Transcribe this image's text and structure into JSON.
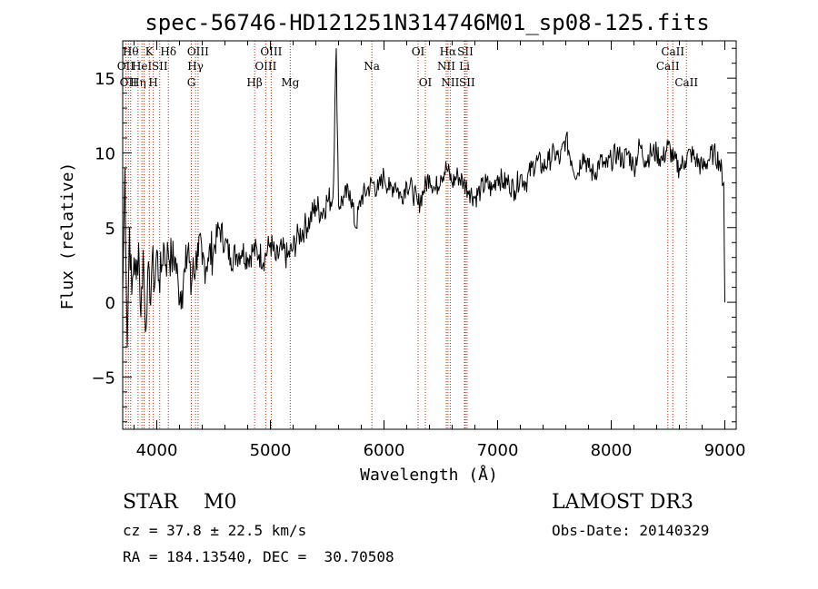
{
  "chart_data": {
    "type": "line",
    "title": "spec-56746-HD121251N314746M01_sp08-125.fits",
    "xlabel": "Wavelength (Å)",
    "ylabel": "Flux (relative)",
    "xlim": [
      3700,
      9100
    ],
    "ylim": [
      -8.5,
      17.5
    ],
    "xticks": [
      4000,
      5000,
      6000,
      7000,
      8000,
      9000
    ],
    "yticks": [
      -5,
      0,
      5,
      10,
      15
    ],
    "series": [
      {
        "name": "spectrum",
        "x": [
          3700,
          3720,
          3740,
          3760,
          3780,
          3800,
          3820,
          3840,
          3860,
          3880,
          3900,
          3920,
          3940,
          3960,
          3980,
          4000,
          4020,
          4040,
          4060,
          4080,
          4100,
          4130,
          4160,
          4190,
          4220,
          4250,
          4280,
          4300,
          4320,
          4340,
          4360,
          4400,
          4450,
          4500,
          4550,
          4600,
          4650,
          4700,
          4750,
          4800,
          4850,
          4900,
          4950,
          5000,
          5050,
          5100,
          5150,
          5200,
          5250,
          5300,
          5350,
          5400,
          5450,
          5500,
          5550,
          5580,
          5600,
          5650,
          5700,
          5750,
          5800,
          5850,
          5900,
          5950,
          6000,
          6050,
          6100,
          6150,
          6200,
          6250,
          6300,
          6350,
          6400,
          6450,
          6500,
          6550,
          6600,
          6650,
          6700,
          6750,
          6800,
          6850,
          6900,
          6950,
          7000,
          7050,
          7100,
          7150,
          7200,
          7250,
          7300,
          7350,
          7400,
          7450,
          7500,
          7550,
          7600,
          7650,
          7700,
          7750,
          7800,
          7850,
          7900,
          7950,
          8000,
          8050,
          8100,
          8150,
          8200,
          8250,
          8300,
          8350,
          8400,
          8450,
          8500,
          8550,
          8600,
          8650,
          8700,
          8750,
          8800,
          8850,
          8900,
          8950,
          8990,
          9000
        ],
        "y": [
          0.5,
          9.0,
          -3.0,
          5.0,
          0.5,
          3.0,
          1.5,
          4.0,
          -1.0,
          3.5,
          -2.0,
          2.0,
          0.0,
          3.0,
          1.0,
          3.5,
          1.5,
          2.0,
          4.0,
          2.5,
          3.5,
          2.8,
          3.0,
          1.0,
          0.8,
          2.0,
          4.0,
          0.5,
          3.0,
          2.0,
          4.0,
          2.5,
          3.0,
          3.5,
          5.0,
          4.0,
          3.0,
          3.2,
          3.5,
          3.0,
          3.5,
          3.2,
          3.0,
          4.0,
          2.8,
          3.5,
          3.0,
          3.6,
          4.5,
          5.0,
          5.5,
          6.5,
          6.0,
          6.8,
          7.0,
          17.0,
          6.5,
          7.0,
          7.5,
          5.0,
          7.0,
          7.5,
          8.0,
          7.5,
          8.5,
          7.5,
          8.0,
          7.0,
          8.0,
          7.5,
          6.5,
          7.5,
          8.5,
          7.5,
          8.5,
          9.0,
          8.0,
          8.5,
          8.0,
          7.5,
          7.0,
          7.5,
          8.0,
          7.5,
          8.5,
          8.0,
          8.0,
          7.5,
          8.5,
          8.0,
          9.0,
          9.5,
          9.0,
          9.5,
          10.0,
          9.5,
          11.0,
          9.5,
          8.5,
          10.0,
          9.0,
          8.5,
          9.5,
          9.0,
          9.5,
          10.0,
          9.5,
          10.0,
          9.0,
          10.5,
          9.5,
          10.0,
          10.0,
          9.5,
          10.5,
          9.5,
          9.0,
          9.5,
          10.0,
          9.5,
          9.0,
          9.5,
          10.0,
          9.5,
          8.0,
          0.0
        ]
      }
    ],
    "line_marks": [
      {
        "wl": 3727,
        "labels": [
          "OII"
        ],
        "row": 2
      },
      {
        "wl": 3750,
        "labels": [
          "OII"
        ],
        "row": 3
      },
      {
        "wl": 3770,
        "labels": [
          "Hθ"
        ],
        "row": 1
      },
      {
        "wl": 3835,
        "labels": [
          "Hη"
        ],
        "row": 3
      },
      {
        "wl": 3869,
        "labels": [
          "HeI"
        ],
        "row": 2
      },
      {
        "wl": 3889,
        "labels": [],
        "row": 0
      },
      {
        "wl": 3934,
        "labels": [
          "K"
        ],
        "row": 1
      },
      {
        "wl": 3969,
        "labels": [
          "H"
        ],
        "row": 3
      },
      {
        "wl": 4026,
        "labels": [
          "SII"
        ],
        "row": 2
      },
      {
        "wl": 4102,
        "labels": [
          "Hδ"
        ],
        "row": 1
      },
      {
        "wl": 4304,
        "labels": [
          "G"
        ],
        "row": 3
      },
      {
        "wl": 4341,
        "labels": [
          "Hγ"
        ],
        "row": 2
      },
      {
        "wl": 4363,
        "labels": [
          "OIII"
        ],
        "row": 1
      },
      {
        "wl": 4861,
        "labels": [
          "Hβ"
        ],
        "row": 3
      },
      {
        "wl": 4959,
        "labels": [
          "OIII"
        ],
        "row": 2
      },
      {
        "wl": 5007,
        "labels": [
          "OIII"
        ],
        "row": 1
      },
      {
        "wl": 5175,
        "labels": [
          "Mg"
        ],
        "row": 3
      },
      {
        "wl": 5893,
        "labels": [
          "Na"
        ],
        "row": 2
      },
      {
        "wl": 6300,
        "labels": [
          "OI"
        ],
        "row": 1
      },
      {
        "wl": 6364,
        "labels": [
          "OI"
        ],
        "row": 3
      },
      {
        "wl": 6548,
        "labels": [
          "NII"
        ],
        "row": 2
      },
      {
        "wl": 6563,
        "labels": [
          "Hα"
        ],
        "row": 1
      },
      {
        "wl": 6583,
        "labels": [
          "NII"
        ],
        "row": 3
      },
      {
        "wl": 6708,
        "labels": [
          "Li"
        ],
        "row": 2
      },
      {
        "wl": 6716,
        "labels": [
          "SII"
        ],
        "row": 1
      },
      {
        "wl": 6731,
        "labels": [
          "SII"
        ],
        "row": 3
      },
      {
        "wl": 8498,
        "labels": [
          "CaII"
        ],
        "row": 2
      },
      {
        "wl": 8542,
        "labels": [
          "CaII"
        ],
        "row": 1
      },
      {
        "wl": 8662,
        "labels": [
          "CaII"
        ],
        "row": 3
      }
    ]
  },
  "info": {
    "class_line": "STAR    M0",
    "survey": "LAMOST DR3",
    "cz": "cz = 37.8 ± 22.5 km/s",
    "obs_date": "Obs-Date: 20140329",
    "coords": "RA = 184.13540, DEC =  30.70508"
  },
  "colors": {
    "spectrum": "#000000",
    "line_marks": "#cc2200",
    "axes": "#000000"
  }
}
